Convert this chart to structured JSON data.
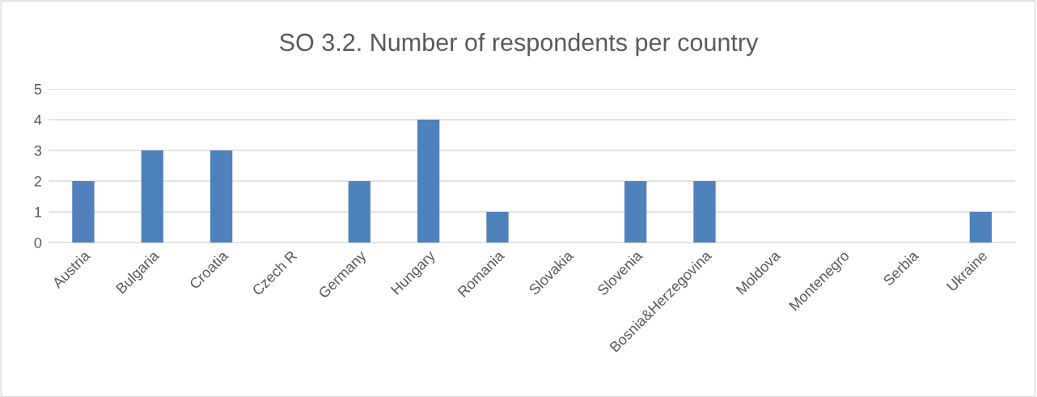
{
  "chart_data": {
    "type": "bar",
    "title": "SO 3.2. Number of respondents per country",
    "categories": [
      "Austria",
      "Bulgaria",
      "Croatia",
      "Czech R",
      "Germany",
      "Hungary",
      "Romania",
      "Slovakia",
      "Slovenia",
      "Bosnia&Herzegovina",
      "Moldova",
      "Montenegro",
      "Serbia",
      "Ukraine"
    ],
    "values": [
      2,
      3,
      3,
      0,
      2,
      4,
      1,
      0,
      2,
      2,
      0,
      0,
      0,
      1
    ],
    "color": "#4f81bd",
    "ylim": [
      0,
      5
    ],
    "yticks": [
      0,
      1,
      2,
      3,
      4,
      5
    ],
    "grid": "y"
  }
}
